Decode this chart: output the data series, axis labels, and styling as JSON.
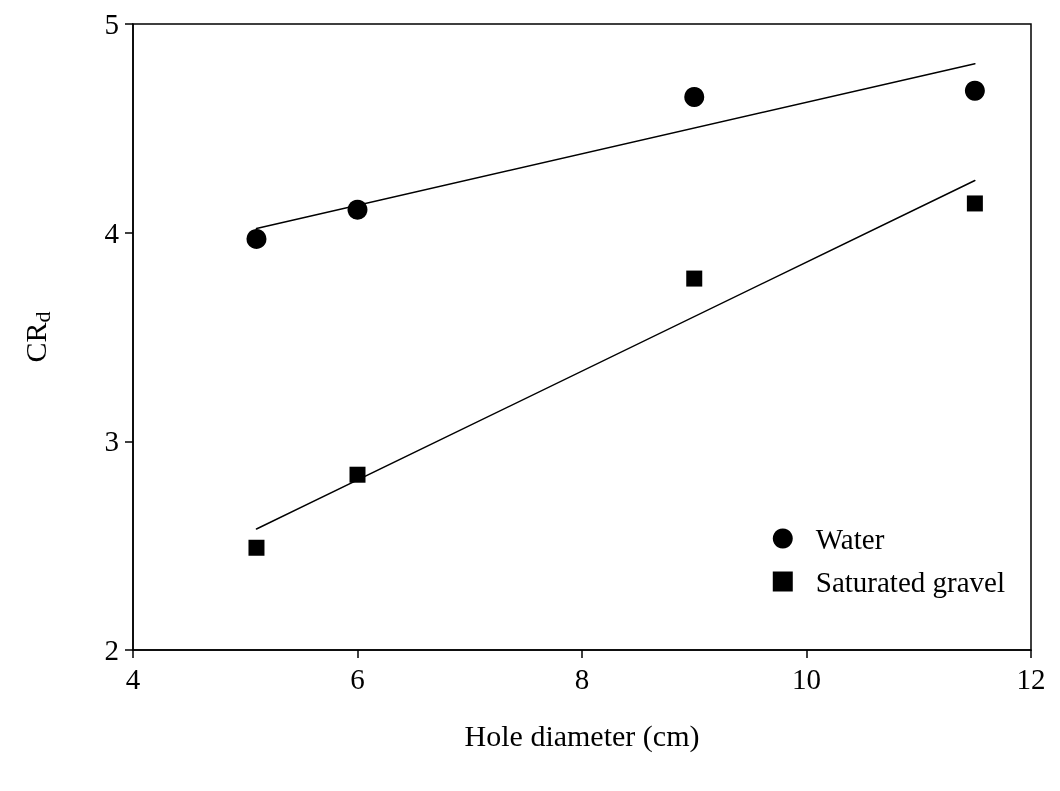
{
  "chart_data": {
    "type": "scatter",
    "xlabel": "Hole diameter (cm)",
    "ylabel": "CR$_{d}$",
    "xlim": [
      4,
      12
    ],
    "xticks": [
      4,
      6,
      8,
      10,
      12
    ],
    "ylim": [
      2,
      5
    ],
    "yticks": [
      2,
      3,
      4,
      5
    ],
    "grid": false,
    "legend": "bottom right",
    "series": [
      {
        "name": "Water",
        "marker": "circle",
        "color": "#000000",
        "x": [
          5.1,
          6,
          9,
          11.5
        ],
        "values": [
          3.97,
          4.11,
          4.65,
          4.68
        ]
      },
      {
        "name": "Saturated gravel",
        "marker": "square",
        "color": "#000000",
        "x": [
          5.1,
          6,
          9,
          11.5
        ],
        "values": [
          2.49,
          2.84,
          3.78,
          4.14
        ]
      },
      {
        "type": "line",
        "marker": "none",
        "line_style": "solid",
        "color": "#000000",
        "x": [
          5.1,
          11.5
        ],
        "values": [
          4.02,
          4.81
        ]
      },
      {
        "type": "line",
        "marker": "none",
        "line_style": "solid",
        "color": "#000000",
        "x": [
          5.1,
          11.5
        ],
        "values": [
          2.58,
          4.25
        ]
      }
    ]
  }
}
